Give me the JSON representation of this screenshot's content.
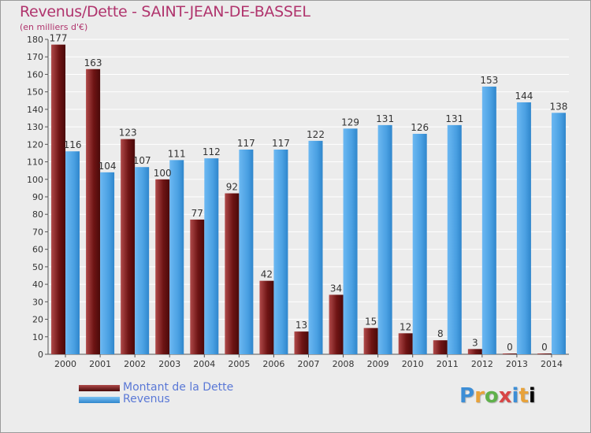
{
  "chart_data": {
    "type": "bar",
    "title": "Revenus/Dette - SAINT-JEAN-DE-BASSEL",
    "subtitle": "(en milliers d'€)",
    "categories": [
      "2000",
      "2001",
      "2002",
      "2003",
      "2004",
      "2005",
      "2006",
      "2007",
      "2008",
      "2009",
      "2010",
      "2011",
      "2012",
      "2013",
      "2014"
    ],
    "series": [
      {
        "name": "Montant de la Dette",
        "color": "#7a1c1c",
        "values": [
          177,
          163,
          123,
          100,
          77,
          92,
          42,
          13,
          34,
          15,
          12,
          8,
          3,
          0,
          0
        ]
      },
      {
        "name": "Revenus",
        "color": "#4a9fe0",
        "values": [
          116,
          104,
          107,
          111,
          112,
          117,
          117,
          122,
          129,
          131,
          126,
          131,
          153,
          144,
          138
        ]
      }
    ],
    "ylim": [
      0,
      180
    ],
    "yticks": [
      0,
      10,
      20,
      30,
      40,
      50,
      60,
      70,
      80,
      90,
      100,
      110,
      120,
      130,
      140,
      150,
      160,
      170,
      180
    ],
    "grid": true,
    "legend_position": "bottom-left"
  },
  "legend": {
    "items": [
      {
        "label": "Montant de la Dette",
        "color": "#7a1c1c"
      },
      {
        "label": "Revenus",
        "color": "#4a9fe0"
      }
    ]
  },
  "logo": {
    "letters": [
      "P",
      "r",
      "o",
      "x",
      "i",
      "t",
      "i"
    ]
  }
}
